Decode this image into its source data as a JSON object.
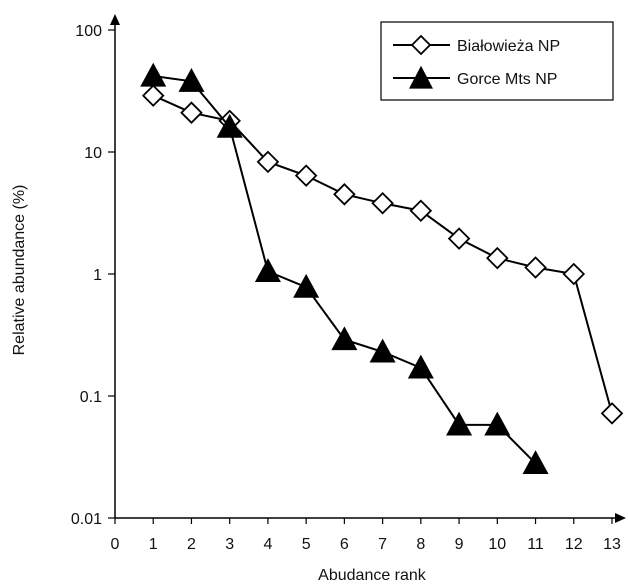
{
  "chart_data": {
    "type": "line",
    "title": "",
    "xlabel": "Abudance rank",
    "ylabel": "Relative abundance (%)",
    "x_scale": "linear",
    "y_scale": "log",
    "xlim": [
      0,
      13
    ],
    "ylim": [
      0.01,
      100
    ],
    "x_ticks": [
      "0",
      "1",
      "2",
      "3",
      "4",
      "5",
      "6",
      "7",
      "8",
      "9",
      "10",
      "11",
      "12",
      "13"
    ],
    "y_ticks": [
      "0.01",
      "0.1",
      "1",
      "10",
      "100"
    ],
    "grid": false,
    "legend_position": "top-right",
    "series": [
      {
        "name": "Białowieża NP",
        "marker": "open-diamond",
        "color": "#000000",
        "x": [
          1,
          2,
          3,
          4,
          5,
          6,
          7,
          8,
          9,
          10,
          11,
          12,
          13
        ],
        "y": [
          29,
          21,
          18,
          8.3,
          6.4,
          4.5,
          3.8,
          3.3,
          1.95,
          1.35,
          1.13,
          1.0,
          0.072
        ]
      },
      {
        "name": "Gorce Mts NP",
        "marker": "filled-triangle",
        "color": "#000000",
        "x": [
          1,
          2,
          3,
          4,
          5,
          6,
          7,
          8,
          9,
          10,
          11
        ],
        "y": [
          42,
          38,
          16,
          1.05,
          0.78,
          0.29,
          0.23,
          0.17,
          0.058,
          0.058,
          0.028
        ]
      }
    ]
  }
}
